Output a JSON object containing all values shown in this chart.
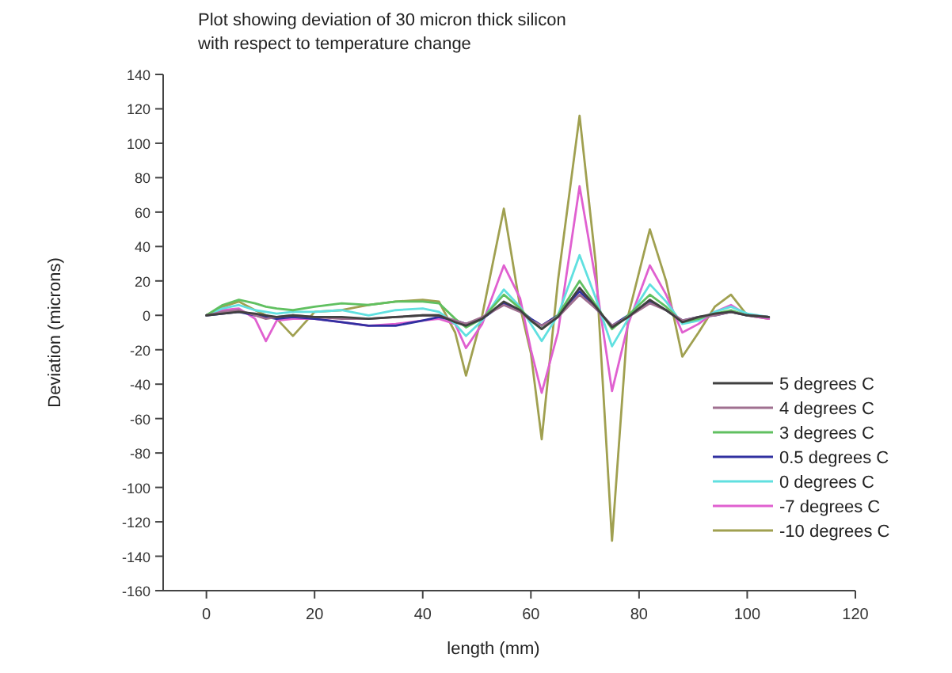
{
  "chart_data": {
    "type": "line",
    "title": "Plot showing deviation of 30 micron thick silicon\nwith respect to temperature change",
    "xlabel": "length (mm)",
    "ylabel": "Deviation (microns)",
    "x": [
      0,
      3,
      6,
      9,
      11,
      13,
      16,
      20,
      25,
      30,
      35,
      40,
      43,
      46,
      48,
      51,
      55,
      58,
      60,
      62,
      65,
      69,
      72,
      75,
      78,
      82,
      85,
      88,
      91,
      94,
      97,
      100,
      104
    ],
    "series": [
      {
        "name": "5 degrees C",
        "color": "#404040",
        "values": [
          0,
          1,
          2,
          1,
          0,
          -1,
          0,
          -1,
          -1,
          -2,
          -1,
          0,
          0,
          -4,
          -6,
          -2,
          8,
          3,
          -3,
          -8,
          -1,
          16,
          5,
          -7,
          -1,
          9,
          3,
          -4,
          -1,
          1,
          2,
          0,
          -1
        ]
      },
      {
        "name": "4 degrees C",
        "color": "#a07090",
        "values": [
          0,
          2,
          3,
          0,
          -2,
          -1,
          0,
          -1,
          -2,
          -2,
          -1,
          0,
          0,
          -3,
          -5,
          -1,
          6,
          2,
          -3,
          -6,
          -1,
          12,
          4,
          -6,
          -1,
          7,
          3,
          -3,
          -1,
          0,
          2,
          0,
          -1
        ]
      },
      {
        "name": "3 degrees C",
        "color": "#60c060",
        "values": [
          0,
          6,
          9,
          7,
          5,
          4,
          3,
          5,
          7,
          6,
          8,
          8,
          7,
          -2,
          -7,
          -2,
          12,
          4,
          -3,
          -8,
          0,
          20,
          6,
          -8,
          0,
          12,
          5,
          -4,
          -2,
          1,
          3,
          0,
          -1
        ]
      },
      {
        "name": "0.5 degrees C",
        "color": "#3030a0",
        "values": [
          0,
          1,
          2,
          0,
          -1,
          -2,
          -1,
          -2,
          -4,
          -6,
          -6,
          -3,
          -1,
          -3,
          -5,
          -2,
          7,
          3,
          -2,
          -6,
          0,
          14,
          4,
          -6,
          0,
          8,
          3,
          -3,
          -1,
          0,
          2,
          0,
          -1
        ]
      },
      {
        "name": "0 degrees C",
        "color": "#60e0e0",
        "values": [
          0,
          4,
          6,
          3,
          2,
          1,
          2,
          2,
          3,
          0,
          3,
          4,
          2,
          -5,
          -12,
          -3,
          15,
          5,
          -5,
          -15,
          0,
          35,
          10,
          -18,
          -2,
          18,
          8,
          -5,
          -3,
          2,
          5,
          1,
          -1
        ]
      },
      {
        "name": "-7 degrees C",
        "color": "#e060d0",
        "values": [
          0,
          3,
          4,
          -2,
          -15,
          -3,
          -2,
          -2,
          -4,
          -6,
          -5,
          -3,
          -2,
          -5,
          -19,
          -5,
          29,
          10,
          -20,
          -45,
          -10,
          75,
          20,
          -44,
          -5,
          29,
          12,
          -10,
          -5,
          2,
          6,
          0,
          -2
        ]
      },
      {
        "name": "-10 degrees C",
        "color": "#a0a050",
        "values": [
          0,
          5,
          8,
          3,
          0,
          -2,
          -12,
          2,
          3,
          6,
          8,
          9,
          8,
          -10,
          -35,
          0,
          62,
          5,
          -22,
          -72,
          20,
          116,
          30,
          -131,
          0,
          50,
          20,
          -24,
          -10,
          5,
          12,
          0,
          -2
        ]
      }
    ],
    "xlim": [
      -8,
      120
    ],
    "xticks": [
      0,
      20,
      40,
      60,
      80,
      100,
      120
    ],
    "ylim": [
      -160,
      140
    ],
    "yticks": [
      -160,
      -140,
      -120,
      -100,
      -80,
      -60,
      -40,
      -20,
      0,
      20,
      40,
      60,
      80,
      100,
      120,
      140
    ],
    "grid": false,
    "legend": "bottom right",
    "marker": "none",
    "line_style": "solid"
  }
}
